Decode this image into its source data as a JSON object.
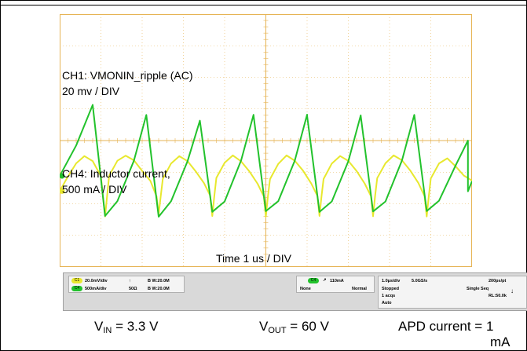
{
  "chart_data": {
    "type": "line",
    "title": "",
    "time_label": "Time 1 us / DIV",
    "x_unit": "us",
    "xlim": [
      -5,
      5
    ],
    "series": [
      {
        "name": "CH1: VMONIN_ripple (AC)",
        "scale": "20 mv / DIV",
        "color": "#e8e82e",
        "ylim": [
          -30,
          70
        ],
        "x": [
          -5.0,
          -4.8,
          -4.6,
          -4.4,
          -4.2,
          -4.0,
          -3.95,
          -3.9,
          -3.85,
          -3.8,
          -3.6,
          -3.4,
          -3.2,
          -3.0,
          -2.8,
          -2.65,
          -2.6,
          -2.55,
          -2.5,
          -2.3,
          -2.1,
          -1.9,
          -1.7,
          -1.5,
          -1.35,
          -1.3,
          -1.25,
          -1.2,
          -1.0,
          -0.8,
          -0.6,
          -0.4,
          -0.2,
          -0.05,
          0.0,
          0.05,
          0.1,
          0.3,
          0.5,
          0.7,
          0.9,
          1.1,
          1.25,
          1.3,
          1.35,
          1.4,
          1.6,
          1.8,
          2.0,
          2.2,
          2.4,
          2.55,
          2.6,
          2.65,
          2.7,
          2.9,
          3.1,
          3.3,
          3.5,
          3.7,
          3.85,
          3.9,
          3.95,
          4.0,
          4.2,
          4.4,
          4.6,
          4.8,
          5.0
        ],
        "y": [
          0,
          6,
          11,
          14,
          12,
          6,
          -2,
          -10,
          -2,
          6,
          12,
          14,
          12,
          8,
          4,
          -2,
          -9,
          -2,
          5,
          11,
          14,
          12,
          8,
          3,
          -2,
          -10,
          -2,
          5,
          11,
          14,
          12,
          8,
          3,
          -2,
          -10,
          -2,
          5,
          11,
          14,
          12,
          8,
          3,
          -2,
          -10,
          -2,
          5,
          11,
          14,
          12,
          8,
          3,
          -2,
          -10,
          -2,
          5,
          11,
          14,
          12,
          8,
          3,
          -2,
          -10,
          -2,
          5,
          11,
          13,
          10,
          6,
          4
        ]
      },
      {
        "name": "CH4: Inductor current,",
        "scale": "500 mA / DIV",
        "color": "#22c22c",
        "ylim": [
          -900,
          1600
        ],
        "x": [
          -5.0,
          -4.6,
          -4.2,
          -4.2,
          -3.9,
          -3.6,
          -3.2,
          -2.9,
          -2.9,
          -2.6,
          -2.3,
          -1.9,
          -1.6,
          -1.6,
          -1.3,
          -1.0,
          -0.6,
          -0.3,
          -0.3,
          0.0,
          0.3,
          0.7,
          1.0,
          1.0,
          1.3,
          1.6,
          2.0,
          2.3,
          2.3,
          2.6,
          2.9,
          3.3,
          3.6,
          3.6,
          3.9,
          4.2,
          4.6,
          4.9,
          4.9,
          5.0
        ],
        "y": [
          0,
          300,
          700,
          700,
          -400,
          -250,
          150,
          600,
          600,
          -400,
          -250,
          150,
          550,
          550,
          -350,
          -250,
          150,
          600,
          600,
          -350,
          -250,
          150,
          600,
          600,
          -350,
          -250,
          150,
          600,
          600,
          -350,
          -250,
          150,
          600,
          600,
          -350,
          -250,
          100,
          350,
          -150,
          -50
        ]
      }
    ]
  },
  "status_bar": {
    "ch1": {
      "badge": "C1",
      "scale": "20.0mV/div",
      "coupling": "↑",
      "bw": "B W:20.0M"
    },
    "ch4": {
      "badge": "C4",
      "scale": "500mA/div",
      "impedance": "50Ω",
      "bw": "B W:20.0M"
    },
    "trigger": {
      "badge": "C4",
      "level": "110mA",
      "source": "None",
      "mode": "Normal"
    },
    "timebase": {
      "div": "1.0µs/div",
      "rate": "5.0GS/s",
      "resolution": "200ps/pt",
      "state": "Stopped",
      "seq": "Single Seq",
      "acqs": "1 acqs",
      "rl": "RL:50.0k",
      "auto": "Auto"
    }
  },
  "footer": {
    "vin_label": "V",
    "vin_sub": "IN",
    "vin_value": " = 3.3 V",
    "vout_label": "V",
    "vout_sub": "OUT",
    "vout_value": " = 60 V",
    "apd_line1": "APD current = 1",
    "apd_line2": "mA"
  },
  "colors": {
    "grid": "#e6b455",
    "ch1": "#e8e82e",
    "ch4": "#22c22c"
  }
}
